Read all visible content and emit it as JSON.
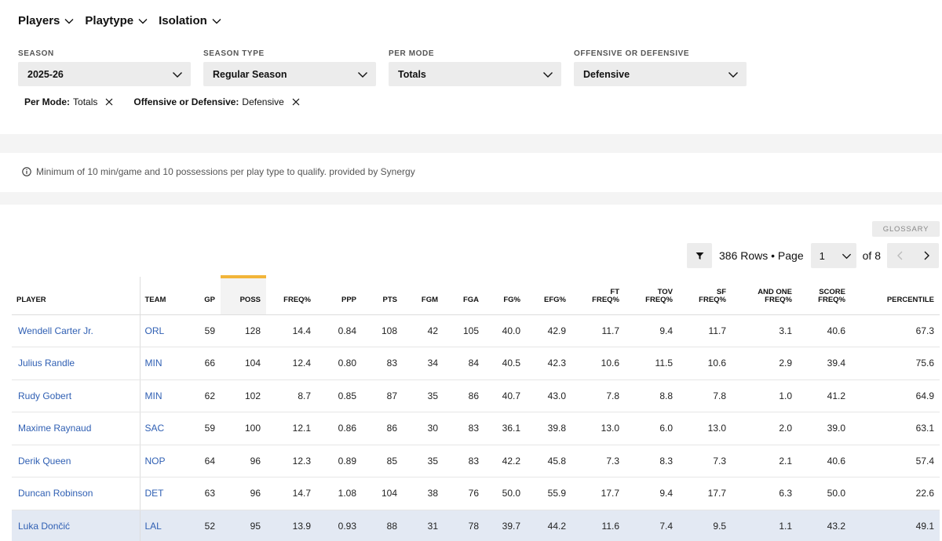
{
  "nav": [
    {
      "label": "Players"
    },
    {
      "label": "Playtype"
    },
    {
      "label": "Isolation"
    }
  ],
  "filters": [
    {
      "label": "SEASON",
      "value": "2025-26"
    },
    {
      "label": "SEASON TYPE",
      "value": "Regular Season"
    },
    {
      "label": "PER MODE",
      "value": "Totals"
    },
    {
      "label": "OFFENSIVE OR DEFENSIVE",
      "value": "Defensive"
    }
  ],
  "chips": [
    {
      "key": "Per Mode:",
      "value": "Totals"
    },
    {
      "key": "Offensive or Defensive:",
      "value": "Defensive"
    }
  ],
  "note": "Minimum of 10 min/game and 10 possessions per play type to qualify. provided by Synergy",
  "glossary_label": "GLOSSARY",
  "pager": {
    "rows_text": "386 Rows • Page",
    "page": "1",
    "of_text": "of 8"
  },
  "columns": [
    {
      "l1": "",
      "l2": "PLAYER"
    },
    {
      "l1": "",
      "l2": "TEAM"
    },
    {
      "l1": "",
      "l2": "GP"
    },
    {
      "l1": "",
      "l2": "POSS"
    },
    {
      "l1": "",
      "l2": "FREQ%"
    },
    {
      "l1": "",
      "l2": "PPP"
    },
    {
      "l1": "",
      "l2": "PTS"
    },
    {
      "l1": "",
      "l2": "FGM"
    },
    {
      "l1": "",
      "l2": "FGA"
    },
    {
      "l1": "",
      "l2": "FG%"
    },
    {
      "l1": "",
      "l2": "EFG%"
    },
    {
      "l1": "FT",
      "l2": "FREQ%"
    },
    {
      "l1": "TOV",
      "l2": "FREQ%"
    },
    {
      "l1": "SF",
      "l2": "FREQ%"
    },
    {
      "l1": "AND ONE",
      "l2": "FREQ%"
    },
    {
      "l1": "SCORE",
      "l2": "FREQ%"
    },
    {
      "l1": "",
      "l2": "PERCENTILE"
    }
  ],
  "rows": [
    [
      "Wendell Carter Jr.",
      "ORL",
      "59",
      "128",
      "14.4",
      "0.84",
      "108",
      "42",
      "105",
      "40.0",
      "42.9",
      "11.7",
      "9.4",
      "11.7",
      "3.1",
      "40.6",
      "67.3"
    ],
    [
      "Julius Randle",
      "MIN",
      "66",
      "104",
      "12.4",
      "0.80",
      "83",
      "34",
      "84",
      "40.5",
      "42.3",
      "10.6",
      "11.5",
      "10.6",
      "2.9",
      "39.4",
      "75.6"
    ],
    [
      "Rudy Gobert",
      "MIN",
      "62",
      "102",
      "8.7",
      "0.85",
      "87",
      "35",
      "86",
      "40.7",
      "43.0",
      "7.8",
      "8.8",
      "7.8",
      "1.0",
      "41.2",
      "64.9"
    ],
    [
      "Maxime Raynaud",
      "SAC",
      "59",
      "100",
      "12.1",
      "0.86",
      "86",
      "30",
      "83",
      "36.1",
      "39.8",
      "13.0",
      "6.0",
      "13.0",
      "2.0",
      "39.0",
      "63.1"
    ],
    [
      "Derik Queen",
      "NOP",
      "64",
      "96",
      "12.3",
      "0.89",
      "85",
      "35",
      "83",
      "42.2",
      "45.8",
      "7.3",
      "8.3",
      "7.3",
      "2.1",
      "40.6",
      "57.4"
    ],
    [
      "Duncan Robinson",
      "DET",
      "63",
      "96",
      "14.7",
      "1.08",
      "104",
      "38",
      "76",
      "50.0",
      "55.9",
      "17.7",
      "9.4",
      "17.7",
      "6.3",
      "50.0",
      "22.6"
    ],
    [
      "Luka Dončić",
      "LAL",
      "52",
      "95",
      "13.9",
      "0.93",
      "88",
      "31",
      "78",
      "39.7",
      "44.2",
      "11.6",
      "7.4",
      "9.5",
      "1.1",
      "43.2",
      "49.1"
    ]
  ]
}
